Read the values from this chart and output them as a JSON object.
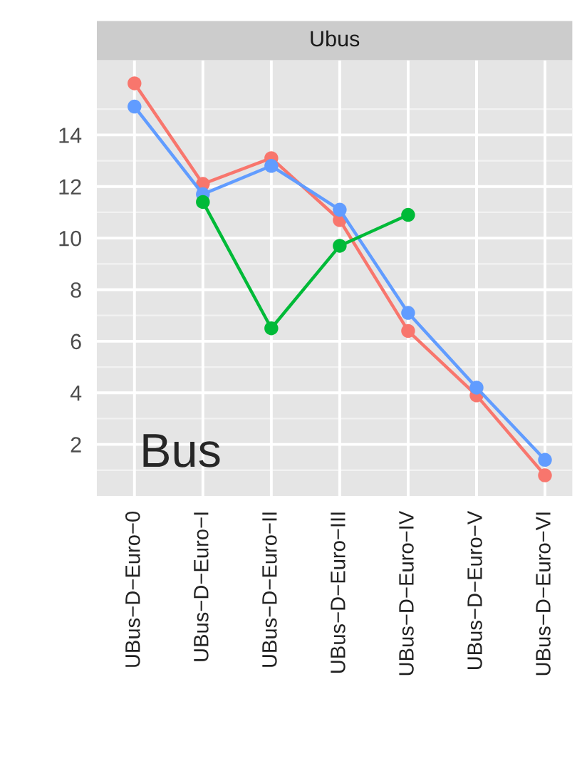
{
  "chart_data": {
    "type": "line",
    "title": "Ubus",
    "categories": [
      "UBus−D−Euro−0",
      "UBus−D−Euro−I",
      "UBus−D−Euro−II",
      "UBus−D−Euro−III",
      "UBus−D−Euro−IV",
      "UBus−D−Euro−V",
      "UBus−D−Euro−VI"
    ],
    "series": [
      {
        "color": "#f8766d",
        "values": [
          16.0,
          12.1,
          13.1,
          10.7,
          6.4,
          3.9,
          0.8
        ]
      },
      {
        "color": "#619cff",
        "values": [
          15.1,
          11.7,
          12.8,
          11.1,
          7.1,
          4.2,
          1.4
        ]
      },
      {
        "color": "#00ba38",
        "values": [
          null,
          11.4,
          6.5,
          9.7,
          10.9,
          null,
          null
        ]
      }
    ],
    "ylim": [
      0,
      16.9
    ],
    "yticks": [
      2,
      4,
      6,
      8,
      10,
      12,
      14
    ],
    "grid": true,
    "marker": "circle",
    "line_style": "solid",
    "annotations": [
      "Bus"
    ]
  }
}
